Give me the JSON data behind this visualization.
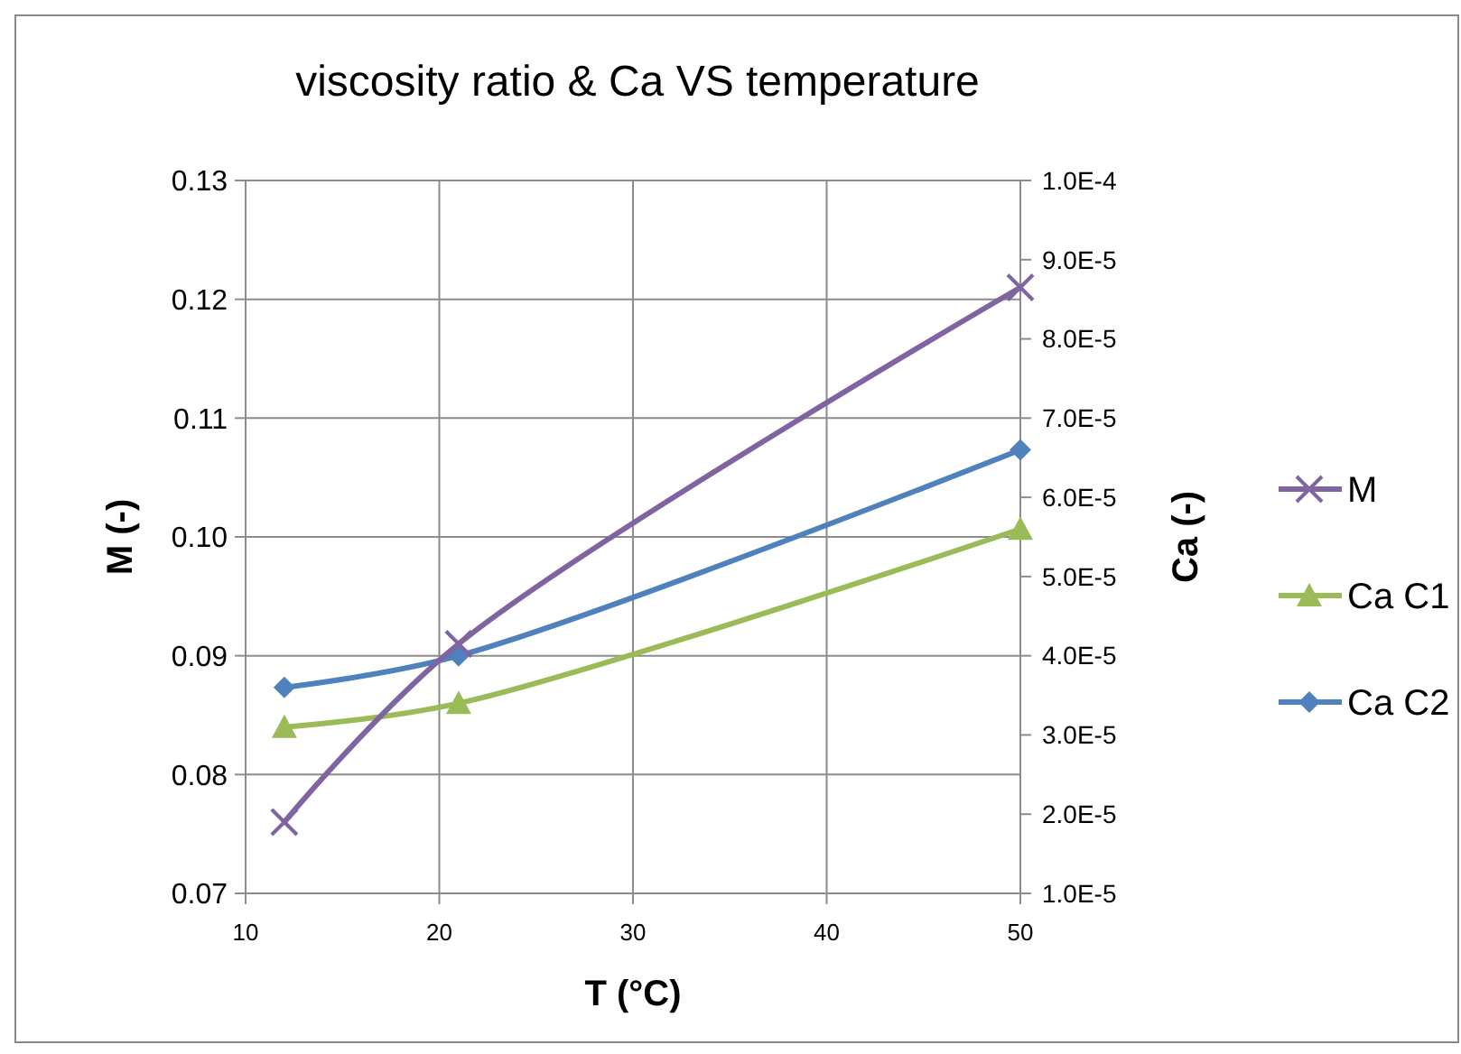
{
  "chart_data": {
    "type": "line",
    "title": "viscosity ratio & Ca VS temperature",
    "xlabel": "T (°C)",
    "ylabel": "M (-)",
    "y2label": "Ca (-)",
    "x": [
      12,
      21,
      50
    ],
    "series": [
      {
        "name": "M",
        "color": "#8064a2",
        "values": [
          0.076,
          0.091,
          0.121
        ],
        "marker": "cross"
      },
      {
        "name": "Ca C1",
        "color": "#9bbb59",
        "values": [
          3.1e-05,
          3.4e-05,
          5.6e-05
        ],
        "axis": "y2",
        "marker": "triangle"
      },
      {
        "name": "Ca C2",
        "color": "#4f81bd",
        "values": [
          3.6e-05,
          4e-05,
          6.6e-05
        ],
        "axis": "y2",
        "marker": "diamond"
      }
    ],
    "xlim": [
      10,
      50
    ],
    "xticks": [
      10,
      20,
      30,
      40,
      50
    ],
    "ylim": [
      0.07,
      0.13
    ],
    "yticks": [
      {
        "value": 0.07,
        "label": "0.07"
      },
      {
        "value": 0.08,
        "label": "0.08"
      },
      {
        "value": 0.09,
        "label": "0.09"
      },
      {
        "value": 0.1,
        "label": "0.10"
      },
      {
        "value": 0.11,
        "label": "0.11"
      },
      {
        "value": 0.12,
        "label": "0.12"
      },
      {
        "value": 0.13,
        "label": "0.13"
      }
    ],
    "y2lim": [
      1e-05,
      0.0001
    ],
    "y2ticks": [
      {
        "value": 1e-05,
        "label": "1.0E-5"
      },
      {
        "value": 2e-05,
        "label": "2.0E-5"
      },
      {
        "value": 3e-05,
        "label": "3.0E-5"
      },
      {
        "value": 4e-05,
        "label": "4.0E-5"
      },
      {
        "value": 5e-05,
        "label": "5.0E-5"
      },
      {
        "value": 6e-05,
        "label": "6.0E-5"
      },
      {
        "value": 7e-05,
        "label": "7.0E-5"
      },
      {
        "value": 8e-05,
        "label": "8.0E-5"
      },
      {
        "value": 9e-05,
        "label": "9.0E-5"
      },
      {
        "value": 0.0001,
        "label": "1.0E-4"
      }
    ],
    "grid": true,
    "legend": "right",
    "line_style": "solid"
  }
}
